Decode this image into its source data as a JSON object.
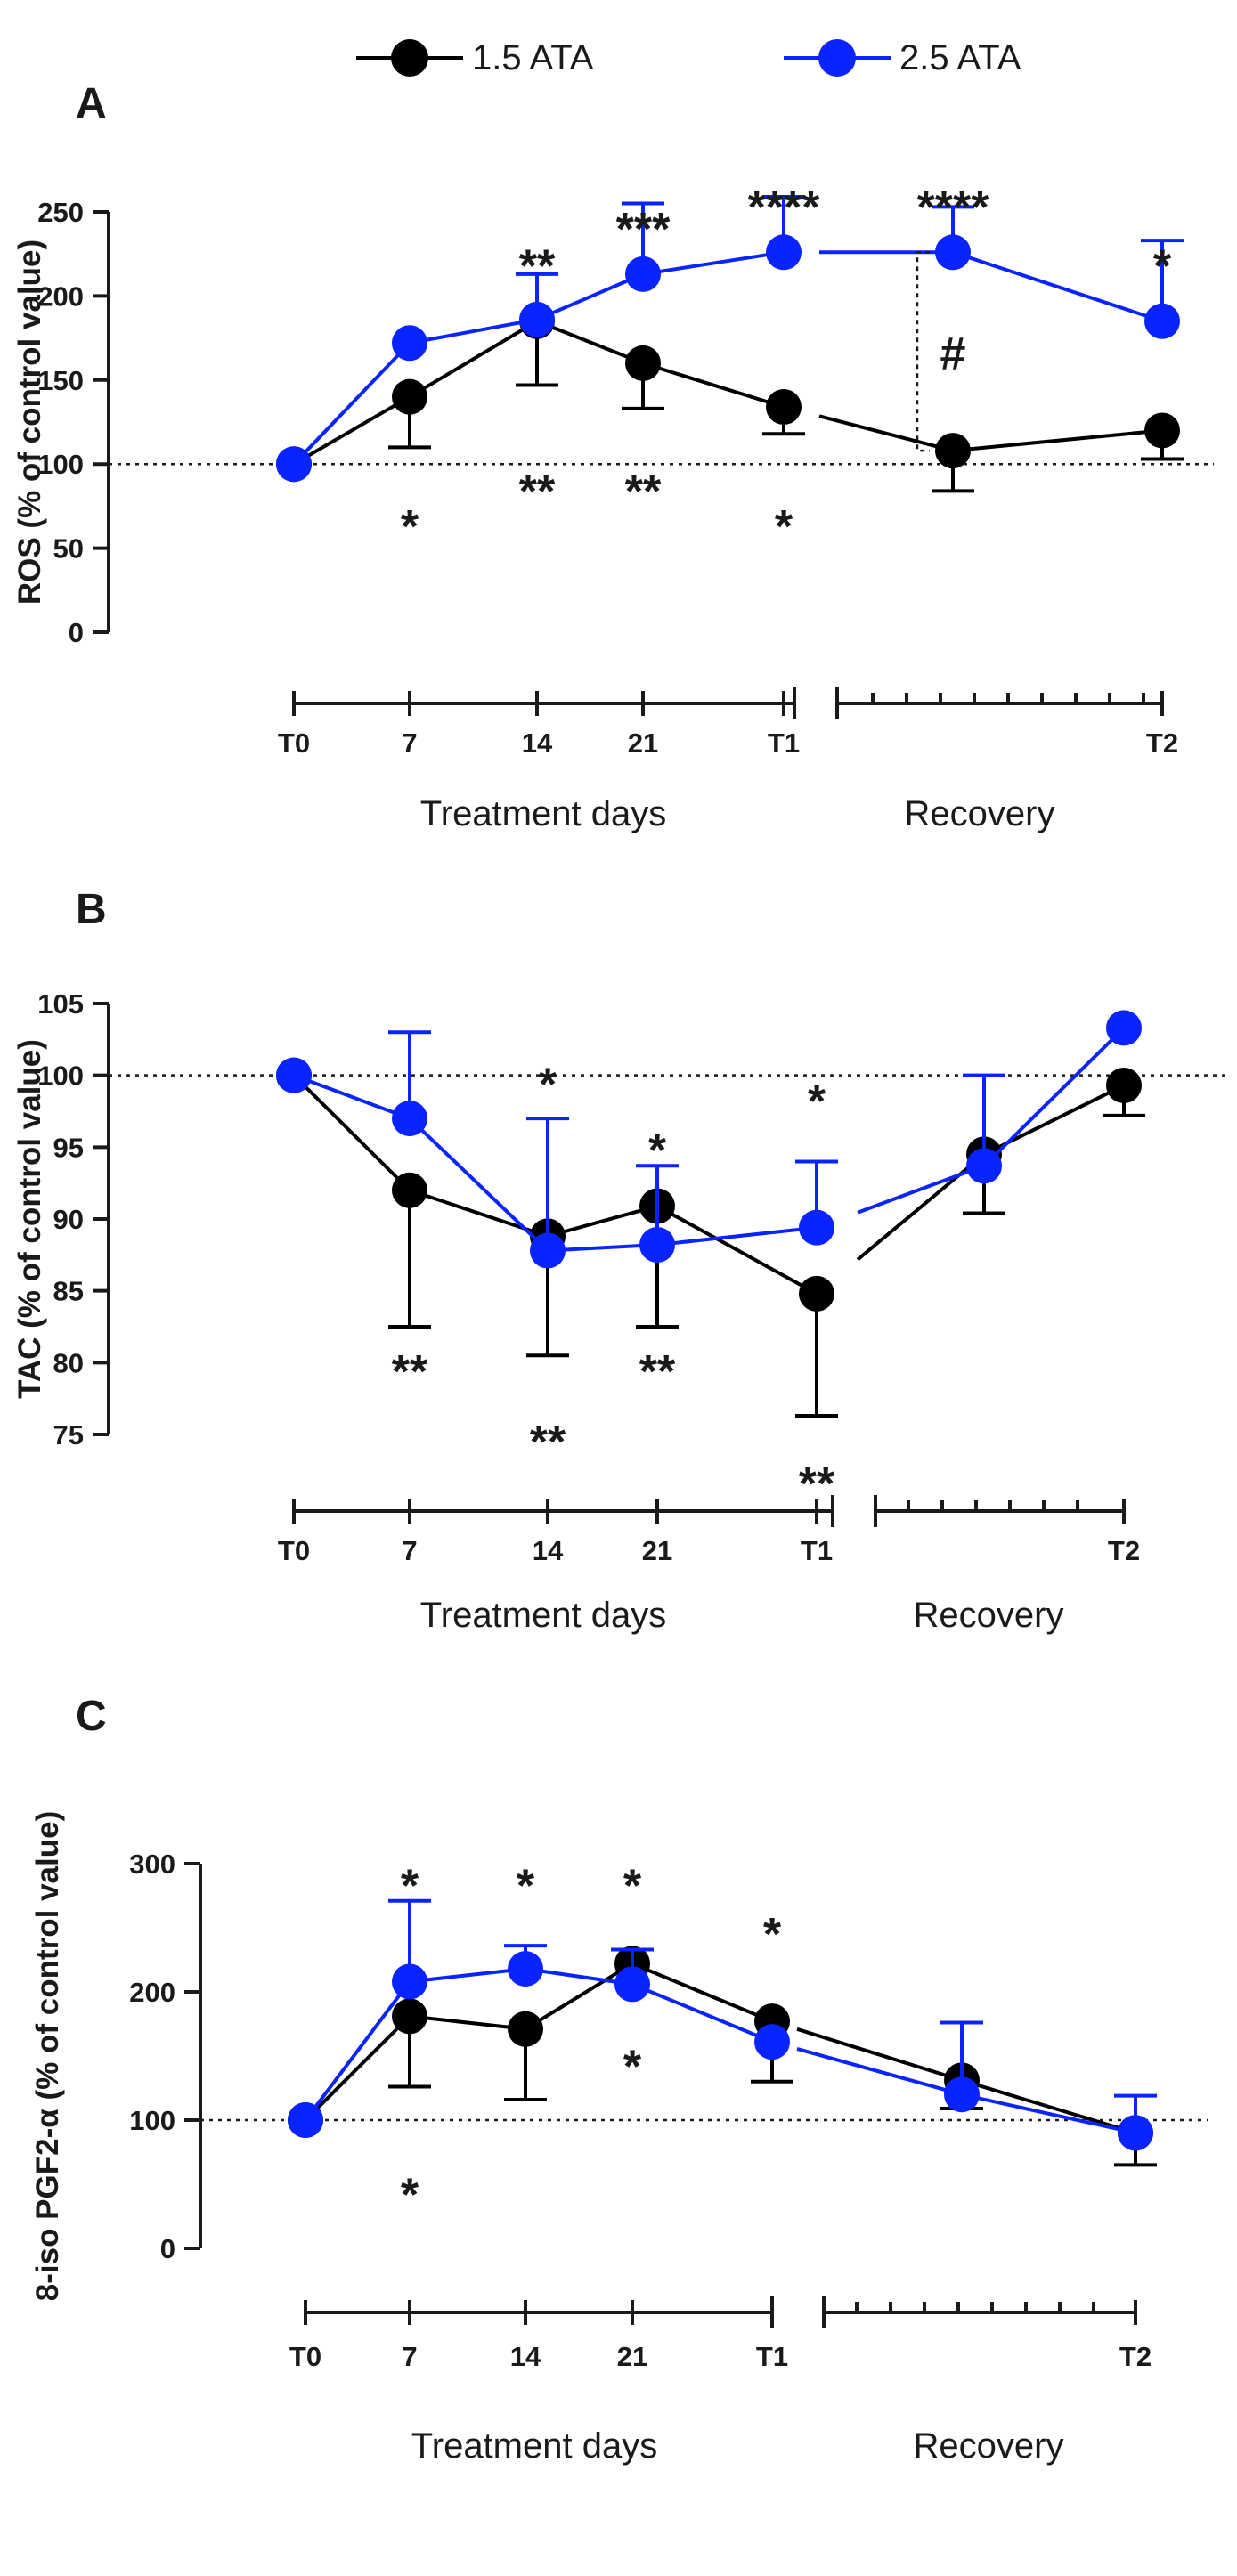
{
  "legend": [
    {
      "name": "1.5 ATA",
      "color": "#000000"
    },
    {
      "name": "2.5 ATA",
      "color": "#0a24ff"
    }
  ],
  "x_axis": {
    "treatment_ticks": [
      "T0",
      "7",
      "14",
      "21",
      "T1"
    ],
    "recovery_end_tick": "T2",
    "treatment_label": "Treatment days",
    "recovery_label": "Recovery"
  },
  "chart_data": [
    {
      "panel": "A",
      "type": "line",
      "ylabel": "ROS (% of control value)",
      "ylim": [
        0,
        250
      ],
      "yticks": [
        0,
        50,
        100,
        150,
        200,
        250
      ],
      "reference_line": 100,
      "x": [
        "T0",
        "7",
        "14",
        "21",
        "T1",
        "Recovery",
        "T2"
      ],
      "series": [
        {
          "name": "1.5 ATA",
          "values": [
            100,
            140,
            185,
            160,
            134,
            108,
            120
          ],
          "error": [
            0,
            30,
            38,
            27,
            16,
            24,
            17
          ]
        },
        {
          "name": "2.5 ATA",
          "values": [
            100,
            172,
            186,
            213,
            226,
            226,
            185
          ],
          "error": [
            0,
            0,
            27,
            42,
            33,
            27,
            48
          ]
        }
      ],
      "annotations": [
        {
          "text": "**",
          "x": "14",
          "y": 218
        },
        {
          "text": "***",
          "x": "21",
          "y": 240
        },
        {
          "text": "****",
          "x": "T1",
          "y": 253
        },
        {
          "text": "****",
          "x": "Recovery",
          "y": 253
        },
        {
          "text": "*",
          "x": "T2",
          "y": 218
        },
        {
          "text": "*",
          "x": "7",
          "y": 63
        },
        {
          "text": "**",
          "x": "14",
          "y": 84
        },
        {
          "text": "**",
          "x": "21",
          "y": 84
        },
        {
          "text": "*",
          "x": "T1",
          "y": 63
        },
        {
          "text": "#",
          "x": "Recovery",
          "y": 166
        }
      ]
    },
    {
      "panel": "B",
      "type": "line",
      "ylabel": "TAC (% of control value)",
      "ylim": [
        75,
        105
      ],
      "yticks": [
        75,
        80,
        85,
        90,
        95,
        100,
        105
      ],
      "reference_line": 100,
      "x": [
        "T0",
        "7",
        "14",
        "21",
        "T1",
        "Recovery",
        "T2"
      ],
      "series": [
        {
          "name": "1.5 ATA",
          "values": [
            100,
            92,
            88.8,
            90.9,
            84.8,
            94.5,
            99.3
          ],
          "error": [
            0,
            9.5,
            8.3,
            8.4,
            8.5,
            4.1,
            2.1
          ]
        },
        {
          "name": "2.5 ATA",
          "values": [
            100,
            97,
            87.8,
            88.2,
            89.4,
            93.7,
            103.3
          ],
          "error": [
            0,
            6,
            9.2,
            5.5,
            4.6,
            6.3,
            0
          ]
        }
      ],
      "annotations": [
        {
          "text": "*",
          "x": "14",
          "y": 99.4
        },
        {
          "text": "*",
          "x": "21",
          "y": 94.8
        },
        {
          "text": "*",
          "x": "T1",
          "y": 98.2
        },
        {
          "text": "**",
          "x": "7",
          "y": 79.4
        },
        {
          "text": "**",
          "x": "21",
          "y": 79.4
        },
        {
          "text": "**",
          "x": "14",
          "y": 74.5
        },
        {
          "text": "**",
          "x": "T1",
          "y": 71.6
        }
      ]
    },
    {
      "panel": "C",
      "type": "line",
      "ylabel": "8-iso PGF2-α (% of control value)",
      "ylim": [
        0,
        300
      ],
      "yticks": [
        0,
        100,
        200,
        300
      ],
      "reference_line": 100,
      "x": [
        "T0",
        "7",
        "14",
        "21",
        "T1",
        "Recovery",
        "T2"
      ],
      "series": [
        {
          "name": "1.5 ATA",
          "values": [
            100,
            181,
            171,
            222,
            177,
            131,
            90
          ],
          "error": [
            0,
            55,
            55,
            0,
            47,
            22,
            25
          ]
        },
        {
          "name": "2.5 ATA",
          "values": [
            100,
            208,
            218,
            206,
            161,
            120,
            90
          ],
          "error": [
            0,
            63,
            18,
            27,
            0,
            56,
            29
          ]
        }
      ],
      "annotations": [
        {
          "text": "*",
          "x": "7",
          "y": 283
        },
        {
          "text": "*",
          "x": "14",
          "y": 283
        },
        {
          "text": "*",
          "x": "21",
          "y": 283
        },
        {
          "text": "*",
          "x": "T1",
          "y": 245
        },
        {
          "text": "*",
          "x": "21",
          "y": 142
        },
        {
          "text": "*",
          "x": "7",
          "y": 42
        }
      ]
    }
  ]
}
